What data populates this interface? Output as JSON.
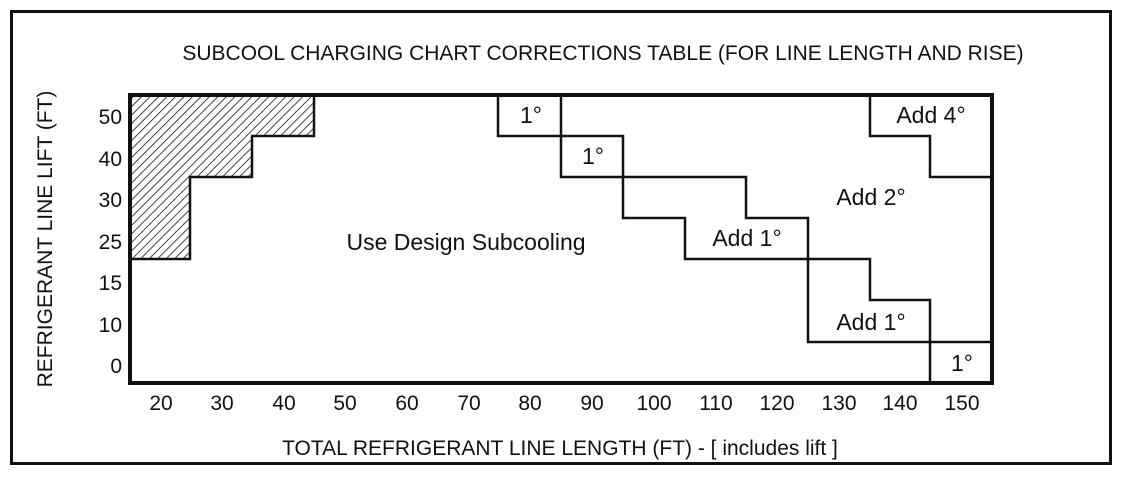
{
  "chart_data": {
    "type": "table",
    "title": "SUBCOOL CHARGING CHART CORRECTIONS TABLE (FOR LINE LENGTH AND RISE)",
    "xlabel": "TOTAL REFRIGERANT LINE LENGTH (FT) - [ includes lift ]",
    "ylabel": "REFRIGERANT LINE LIFT (FT)",
    "x_ticks": [
      "20",
      "30",
      "40",
      "50",
      "60",
      "70",
      "80",
      "90",
      "100",
      "110",
      "120",
      "130",
      "140",
      "150"
    ],
    "y_ticks": [
      "0",
      "10",
      "15",
      "25",
      "30",
      "40",
      "50"
    ],
    "region_labels": [
      {
        "label": "Use Design Subcooling"
      },
      {
        "label": "1°"
      },
      {
        "label": "1°"
      },
      {
        "label": "Add 1°"
      },
      {
        "label": "Add 1°"
      },
      {
        "label": "Add 2°"
      },
      {
        "label": "Add 4°"
      },
      {
        "label": "1°"
      }
    ],
    "hatched_region": "not applicable (upper-left corner)"
  },
  "colors": {
    "line": "#111111",
    "background": "#ffffff"
  }
}
